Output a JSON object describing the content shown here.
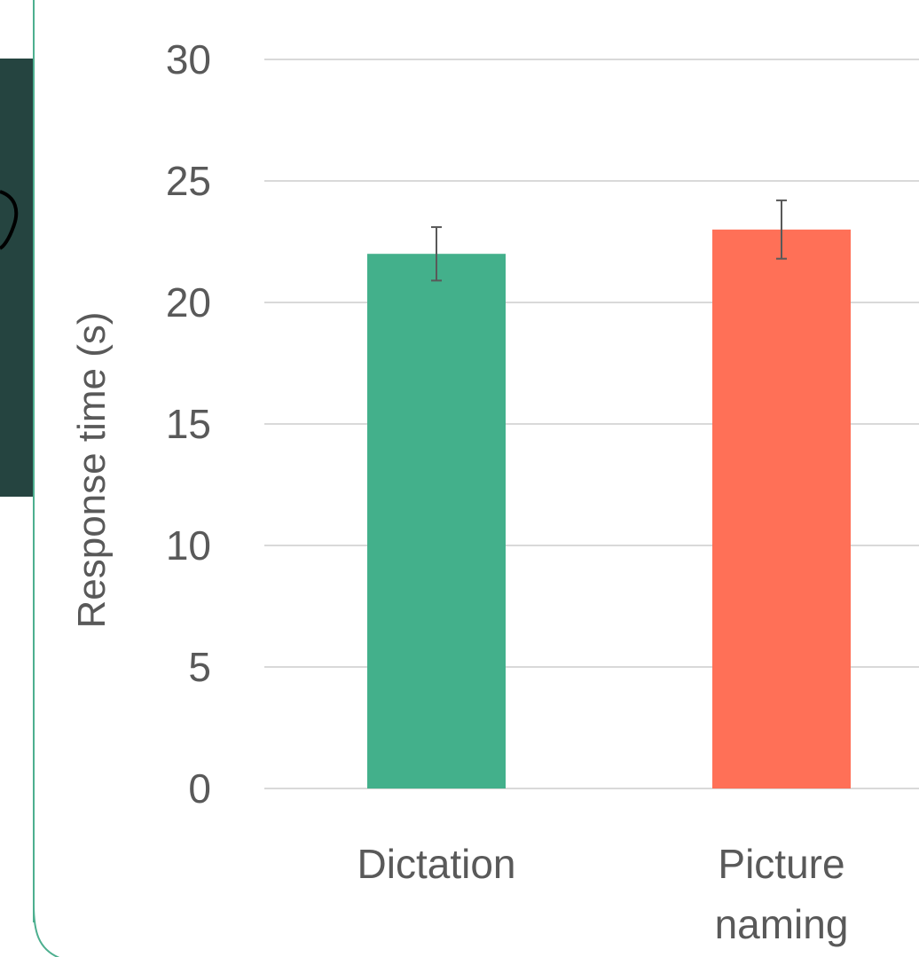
{
  "chart_data": {
    "type": "bar",
    "categories": [
      "Dictation",
      "Picture naming"
    ],
    "category_label_lines": [
      [
        "Dictation"
      ],
      [
        "Picture",
        "naming"
      ]
    ],
    "values": [
      22,
      23
    ],
    "error": [
      1.1,
      1.2
    ],
    "colors": [
      "#43b08b",
      "#ff7057"
    ],
    "title": "",
    "xlabel": "",
    "ylabel": "Response time (s)",
    "ylim": [
      0,
      30
    ],
    "yticks": [
      0,
      5,
      10,
      15,
      20,
      25,
      30
    ],
    "grid": true,
    "legend": "none"
  },
  "colors": {
    "gridline": "#d9d9d9",
    "text": "#595959",
    "errorbar": "#595959",
    "side_panel": "#254440",
    "side_rule": "#4daf8f"
  }
}
